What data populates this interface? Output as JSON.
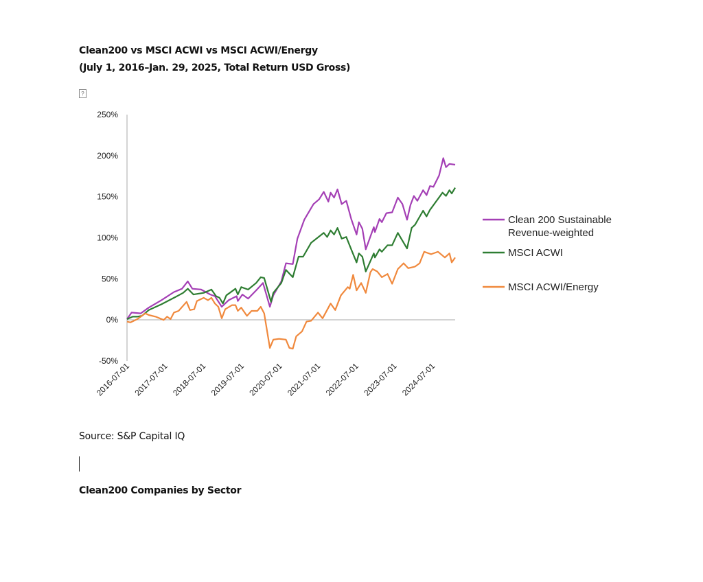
{
  "document": {
    "title_line1": "Clean200 vs MSCI ACWI vs MSCI ACWI/Energy",
    "title_line2": "(July 1, 2016–Jan. 29, 2025, Total Return USD Gross)",
    "broken_image_glyph": "?",
    "source": "Source: S&P Capital IQ",
    "next_heading": "Clean200 Companies by Sector"
  },
  "chart_data": {
    "type": "line",
    "title": "Clean200 vs MSCI ACWI vs MSCI ACWI/Energy (July 1, 2016–Jan. 29, 2025, Total Return USD Gross)",
    "xlabel": "",
    "ylabel": "",
    "x_unit": "years since 2016-07-01",
    "xlim": [
      0,
      8.59
    ],
    "ylim": [
      -50,
      250
    ],
    "yticks": [
      -50,
      0,
      50,
      100,
      150,
      200,
      250
    ],
    "ytick_labels": [
      "-50%",
      "0%",
      "50%",
      "100%",
      "150%",
      "200%",
      "250%"
    ],
    "xticks": [
      0,
      1,
      2,
      3,
      4,
      5,
      6,
      7,
      8
    ],
    "xtick_labels": [
      "2016-07-01",
      "2017-07-01",
      "2018-07-01",
      "2019-07-01",
      "2020-07-01",
      "2021-07-01",
      "2022-07-01",
      "2023-07-01",
      "2024-07-01"
    ],
    "legend_position": "right",
    "series": [
      {
        "name": "Clean 200 Sustainable Revenue-weighted",
        "legend_lines": [
          "Clean 200 Sustainable",
          "Revenue-weighted"
        ],
        "color": "#a43fb5",
        "x": [
          0,
          0.12,
          0.36,
          0.57,
          0.9,
          1.23,
          1.44,
          1.59,
          1.71,
          1.94,
          2.18,
          2.3,
          2.48,
          2.66,
          2.87,
          2.9,
          3.02,
          3.17,
          3.38,
          3.56,
          3.74,
          3.83,
          4.04,
          4.16,
          4.34,
          4.46,
          4.64,
          4.88,
          5.03,
          5.15,
          5.27,
          5.33,
          5.42,
          5.51,
          5.62,
          5.74,
          5.87,
          6.01,
          6.07,
          6.16,
          6.25,
          6.46,
          6.49,
          6.61,
          6.67,
          6.79,
          6.94,
          7.09,
          7.21,
          7.33,
          7.42,
          7.51,
          7.6,
          7.75,
          7.84,
          7.93,
          8.02,
          8.17,
          8.28,
          8.35,
          8.44,
          8.59
        ],
        "y": [
          1,
          9,
          8,
          15,
          24,
          34,
          38,
          47,
          38,
          37,
          31,
          29,
          16,
          24,
          29,
          23,
          31,
          26,
          36,
          45,
          16,
          30,
          47,
          69,
          68,
          99,
          122,
          141,
          147,
          156,
          144,
          155,
          149,
          159,
          141,
          145,
          123,
          104,
          119,
          111,
          86,
          113,
          107,
          123,
          119,
          130,
          131,
          149,
          141,
          122,
          140,
          151,
          145,
          158,
          152,
          163,
          162,
          176,
          197,
          186,
          190,
          189
        ]
      },
      {
        "name": "MSCI ACWI",
        "legend_lines": [
          "MSCI ACWI"
        ],
        "color": "#2e7d32",
        "x": [
          0,
          0.15,
          0.27,
          0.39,
          0.57,
          0.9,
          1.23,
          1.47,
          1.59,
          1.74,
          2.01,
          2.21,
          2.33,
          2.42,
          2.51,
          2.6,
          2.84,
          2.9,
          2.99,
          3.17,
          3.38,
          3.5,
          3.59,
          3.77,
          3.83,
          4.04,
          4.16,
          4.34,
          4.49,
          4.61,
          4.82,
          5.15,
          5.24,
          5.33,
          5.42,
          5.51,
          5.62,
          5.74,
          5.87,
          6.01,
          6.07,
          6.16,
          6.25,
          6.46,
          6.49,
          6.61,
          6.67,
          6.82,
          6.94,
          7.09,
          7.33,
          7.45,
          7.54,
          7.75,
          7.84,
          7.93,
          8.26,
          8.35,
          8.44,
          8.5,
          8.59
        ],
        "y": [
          1,
          4,
          4,
          5,
          12,
          19,
          27,
          33,
          38,
          31,
          33,
          37,
          29,
          27,
          20,
          30,
          38,
          31,
          40,
          37,
          45,
          52,
          51,
          22,
          33,
          45,
          61,
          52,
          77,
          77,
          94,
          106,
          101,
          109,
          104,
          112,
          99,
          101,
          86,
          70,
          81,
          77,
          59,
          81,
          76,
          86,
          83,
          91,
          91,
          106,
          87,
          112,
          116,
          133,
          126,
          134,
          155,
          151,
          158,
          154,
          161
        ]
      },
      {
        "name": "MSCI ACWI/Energy",
        "legend_lines": [
          "MSCI ACWI/Energy"
        ],
        "color": "#f0893d",
        "x": [
          0,
          0.09,
          0.27,
          0.48,
          0.57,
          0.75,
          0.96,
          1.05,
          1.14,
          1.23,
          1.35,
          1.56,
          1.65,
          1.76,
          1.83,
          2.01,
          2.12,
          2.21,
          2.3,
          2.39,
          2.48,
          2.57,
          2.75,
          2.84,
          2.9,
          2.99,
          3.14,
          3.26,
          3.41,
          3.5,
          3.59,
          3.74,
          3.83,
          3.98,
          4.16,
          4.25,
          4.34,
          4.43,
          4.58,
          4.7,
          4.82,
          5.0,
          5.12,
          5.33,
          5.45,
          5.6,
          5.78,
          5.83,
          5.92,
          6.01,
          6.13,
          6.25,
          6.37,
          6.43,
          6.55,
          6.67,
          6.82,
          6.94,
          7.09,
          7.24,
          7.36,
          7.54,
          7.66,
          7.78,
          7.96,
          8.14,
          8.32,
          8.44,
          8.5,
          8.59
        ],
        "y": [
          -2,
          -3,
          1,
          8,
          6,
          4,
          0,
          4,
          1,
          9,
          11,
          22,
          12,
          13,
          23,
          27,
          24,
          27,
          20,
          16,
          2,
          13,
          18,
          18,
          11,
          15,
          5,
          11,
          11,
          16,
          8,
          -34,
          -24,
          -23,
          -24,
          -34,
          -35,
          -20,
          -14,
          -2,
          -1,
          9,
          2,
          20,
          12,
          30,
          40,
          38,
          55,
          36,
          45,
          33,
          58,
          62,
          59,
          52,
          56,
          44,
          62,
          69,
          63,
          65,
          69,
          83,
          80,
          83,
          76,
          81,
          70,
          76
        ]
      }
    ]
  }
}
